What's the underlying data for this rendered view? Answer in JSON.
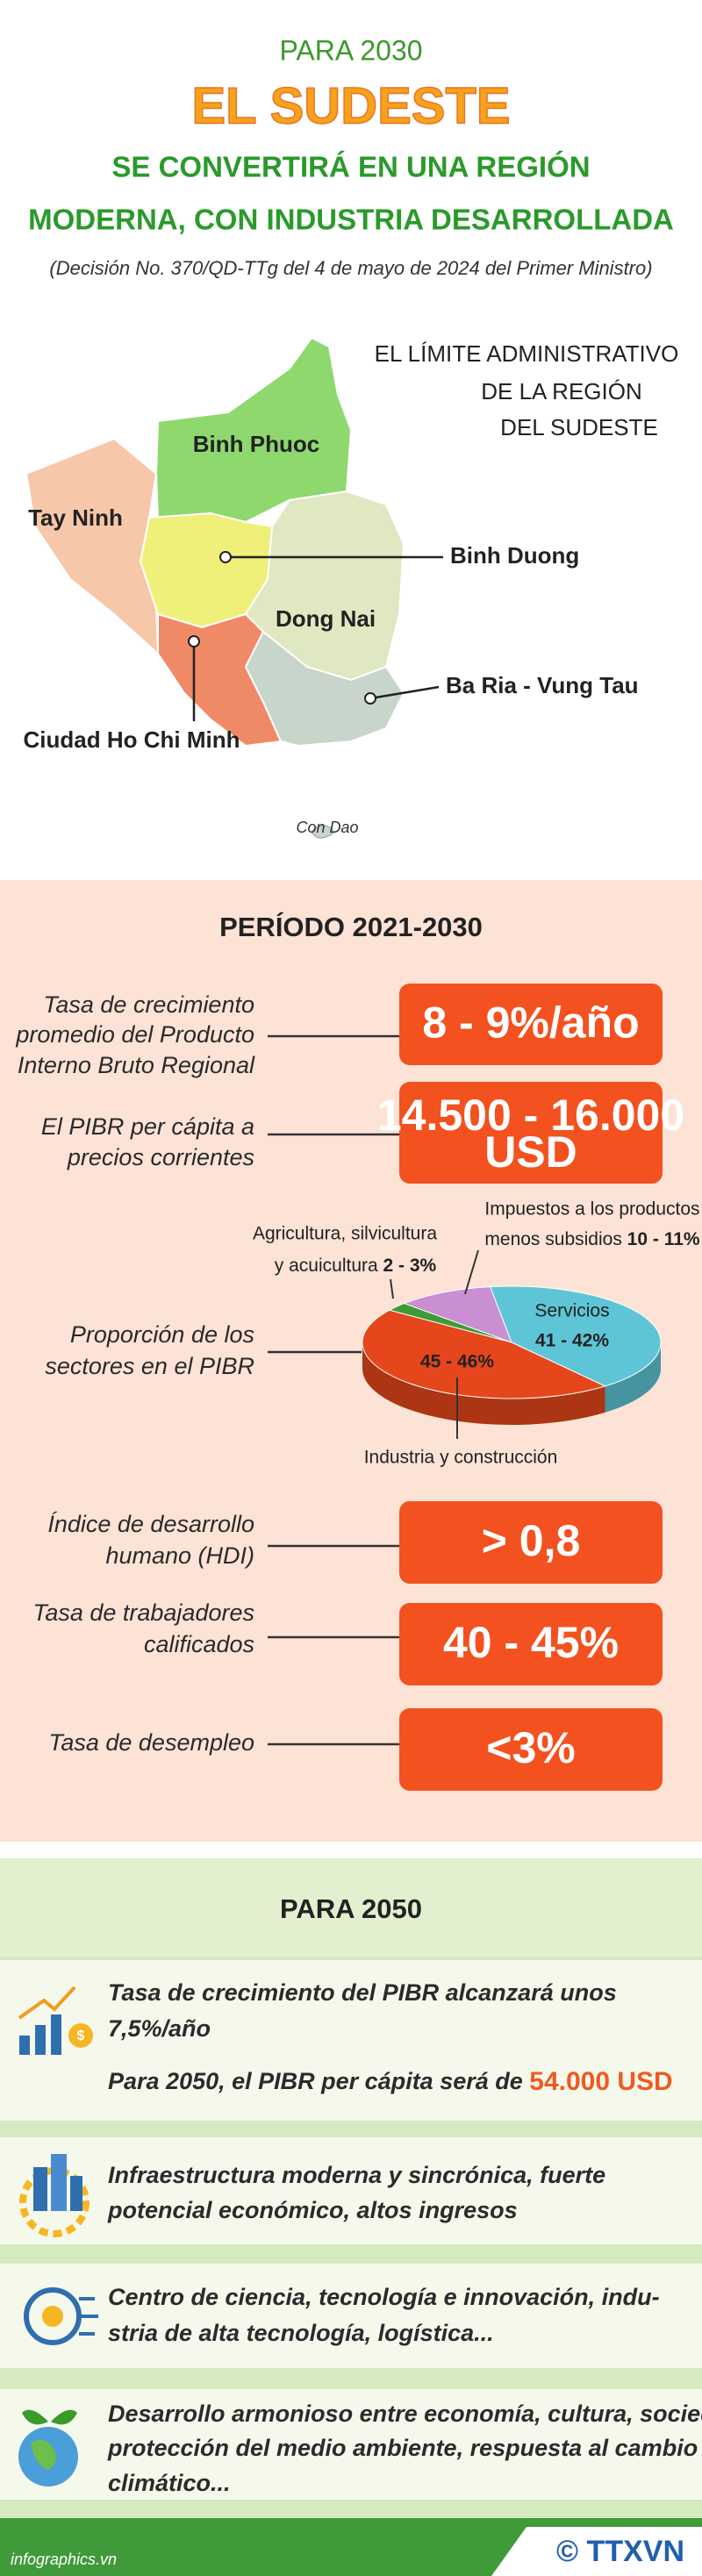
{
  "header": {
    "kicker": "PARA 2030",
    "title": "EL SUDESTE",
    "subtitle_lines": [
      "SE CONVERTIRÁ EN UNA REGIÓN",
      "MODERNA, CON INDUSTRIA DESARROLLADA"
    ],
    "note": "(Decisión No. 370/QD-TTg del 4 de mayo de 2024 del Primer Ministro)"
  },
  "map": {
    "title_lines": [
      "EL LÍMITE ADMINISTRATIVO",
      "DE LA REGIÓN",
      "DEL SUDESTE"
    ],
    "regions": [
      "Binh Phuoc",
      "Tay Ninh",
      "Binh Duong",
      "Dong Nai",
      "Ba Ria - Vung Tau",
      "Ciudad Ho Chi Minh"
    ],
    "island": "Con Dao"
  },
  "period_2030": {
    "title": "PERÍODO 2021-2030",
    "indicators": [
      {
        "label_lines": [
          "Tasa de crecimiento",
          "promedio del Producto",
          "Interno Bruto Regional"
        ],
        "value_lines": [
          "8 - 9%/año"
        ]
      },
      {
        "label_lines": [
          "El PIBR per cápita a",
          "precios corrientes"
        ],
        "value_lines": [
          "14.500 - 16.000",
          "USD"
        ]
      },
      {
        "label_lines": [
          "Índice de desarrollo",
          "humano (HDI)"
        ],
        "value_lines": [
          "> 0,8"
        ]
      },
      {
        "label_lines": [
          "Tasa de trabajadores",
          "calificados"
        ],
        "value_lines": [
          "40 - 45%"
        ]
      },
      {
        "label_lines": [
          "Tasa de desempleo"
        ],
        "value_lines": [
          "<3%"
        ]
      }
    ],
    "sectors": {
      "label_lines": [
        "Proporción de los",
        "sectores en el PIBR"
      ],
      "segments": [
        {
          "name_lines": [
            "Agricultura, silvicultura",
            "y acuicultura"
          ],
          "range": "2 - 3%",
          "low": 2,
          "high": 3,
          "color": "#3f9b34"
        },
        {
          "name_lines": [
            "Impuestos a los productos",
            "menos subsidios"
          ],
          "range": "10 - 11%",
          "low": 10,
          "high": 11,
          "color": "#c98fd2"
        },
        {
          "name_lines": [
            "Servicios"
          ],
          "range": "41 - 42%",
          "low": 41,
          "high": 42,
          "color": "#5ec5d6"
        },
        {
          "name_lines": [
            "Industria y construcción"
          ],
          "range": "45 - 46%",
          "low": 45,
          "high": 46,
          "color": "#e5461b"
        }
      ]
    }
  },
  "vision_2050": {
    "title": "PARA 2050",
    "items": [
      {
        "lines": [
          "Tasa de crecimiento del PIBR alcanzará unos"
        ],
        "highlight": "7,5%/año",
        "lines2": [
          "Para 2050, el PIBR per cápita será de"
        ],
        "highlight2": "54.000 USD"
      },
      {
        "lines": [
          "Infraestructura moderna y sincrónica, fuerte",
          "potencial económico, altos ingresos"
        ]
      },
      {
        "lines": [
          "Centro de ciencia, tecnología e innovación, indu-",
          "stria de alta tecnología, logística..."
        ]
      },
      {
        "lines": [
          "Desarrollo armonioso entre economía, cultura, sociedad,",
          "protección del medio ambiente, respuesta al cambio",
          "climático..."
        ]
      }
    ]
  },
  "footer": {
    "source": "infographics.vn",
    "agency": "© TTXVN"
  }
}
